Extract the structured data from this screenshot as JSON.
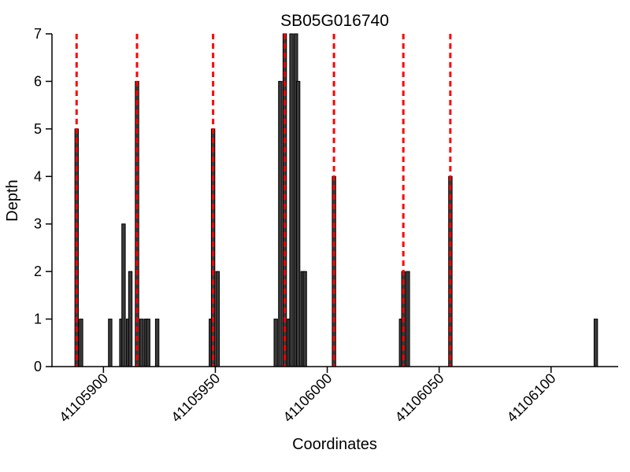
{
  "figure": {
    "title": "SB05G016740",
    "xlabel": "Coordinates",
    "ylabel": "Depth"
  },
  "chart_data": {
    "type": "bar",
    "title": "SB05G016740",
    "xlabel": "Coordinates",
    "ylabel": "Depth",
    "xlim": [
      41105877,
      41106130
    ],
    "ylim": [
      0,
      7
    ],
    "x_ticks": [
      41105900,
      41105950,
      41106000,
      41106050,
      41106100
    ],
    "y_ticks": [
      0,
      1,
      2,
      3,
      4,
      5,
      6,
      7
    ],
    "grid": false,
    "legend": false,
    "x_tick_rotation_deg": 45,
    "bar_color": "#3a3a3a",
    "bar_edge_color": "#000000",
    "axis_color": "#000000",
    "marker_line_color": "#ff0000",
    "marker_line_style": "dashed",
    "bars": [
      {
        "coordinate": 41105888,
        "depth": 5
      },
      {
        "coordinate": 41105890,
        "depth": 1
      },
      {
        "coordinate": 41105903,
        "depth": 1
      },
      {
        "coordinate": 41105908,
        "depth": 1
      },
      {
        "coordinate": 41105909,
        "depth": 3
      },
      {
        "coordinate": 41105911,
        "depth": 1
      },
      {
        "coordinate": 41105912,
        "depth": 2
      },
      {
        "coordinate": 41105915,
        "depth": 6
      },
      {
        "coordinate": 41105917,
        "depth": 1
      },
      {
        "coordinate": 41105919,
        "depth": 1
      },
      {
        "coordinate": 41105920,
        "depth": 1
      },
      {
        "coordinate": 41105924,
        "depth": 1
      },
      {
        "coordinate": 41105948,
        "depth": 1
      },
      {
        "coordinate": 41105949,
        "depth": 5
      },
      {
        "coordinate": 41105951,
        "depth": 2
      },
      {
        "coordinate": 41105977,
        "depth": 1
      },
      {
        "coordinate": 41105979,
        "depth": 6
      },
      {
        "coordinate": 41105981,
        "depth": 7
      },
      {
        "coordinate": 41105983,
        "depth": 1
      },
      {
        "coordinate": 41105984,
        "depth": 7
      },
      {
        "coordinate": 41105986,
        "depth": 7
      },
      {
        "coordinate": 41105987,
        "depth": 6
      },
      {
        "coordinate": 41105989,
        "depth": 2
      },
      {
        "coordinate": 41105990,
        "depth": 2
      },
      {
        "coordinate": 41106003,
        "depth": 4
      },
      {
        "coordinate": 41106033,
        "depth": 1
      },
      {
        "coordinate": 41106034,
        "depth": 2
      },
      {
        "coordinate": 41106036,
        "depth": 2
      },
      {
        "coordinate": 41106055,
        "depth": 4
      },
      {
        "coordinate": 41106120,
        "depth": 1
      }
    ],
    "marker_lines": [
      41105888,
      41105915,
      41105949,
      41105981,
      41106003,
      41106034,
      41106055
    ]
  }
}
